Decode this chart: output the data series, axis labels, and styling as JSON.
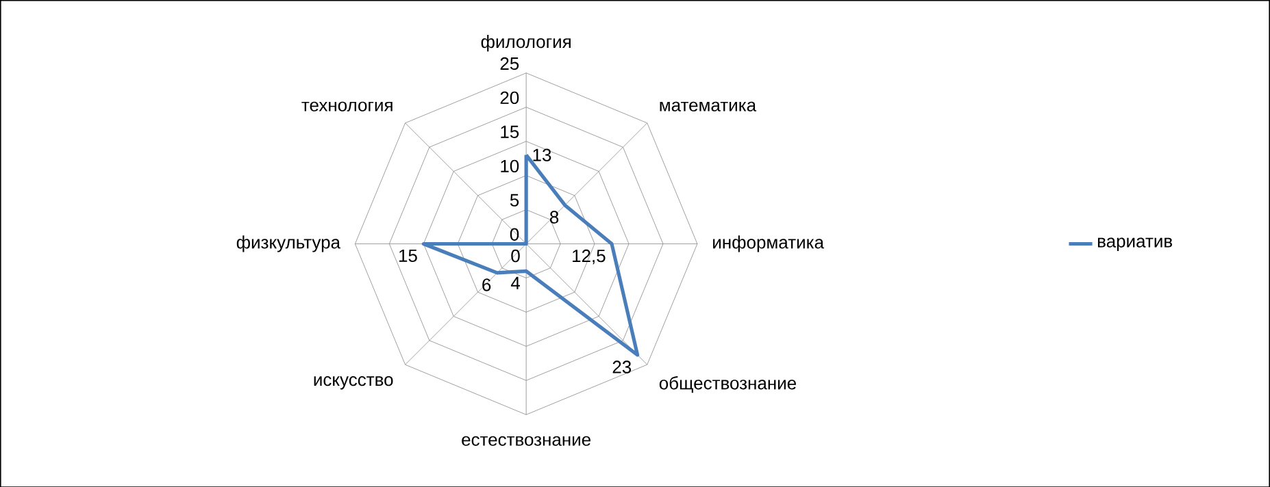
{
  "chart_data": {
    "type": "radar",
    "categories": [
      "филология",
      "математика",
      "информатика",
      "обществознание",
      "естествознание",
      "искусство",
      "физкультура",
      "технология"
    ],
    "series": [
      {
        "name": "вариатив",
        "color": "#4a7ebb",
        "values": [
          13,
          8,
          12.5,
          23,
          4,
          6,
          15,
          0
        ],
        "value_labels": [
          "13",
          "8",
          "12,5",
          "23",
          "4",
          "6",
          "15",
          "0"
        ]
      }
    ],
    "ylim": [
      0,
      25
    ],
    "yticks": [
      0,
      5,
      10,
      15,
      20,
      25
    ],
    "grid": true,
    "legend": "right"
  }
}
